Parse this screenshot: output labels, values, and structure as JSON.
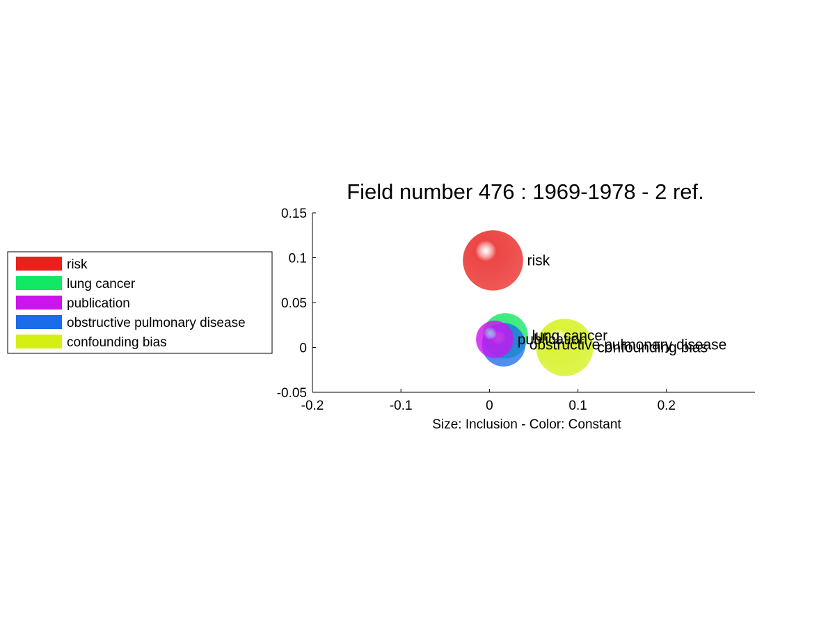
{
  "chart_data": {
    "type": "scatter",
    "title": "Field number 476 : 1969-1978  - 2 ref.",
    "xlabel": "Size: Inclusion - Color: Constant",
    "ylabel": "",
    "xlim": [
      -0.2,
      0.3
    ],
    "ylim": [
      -0.05,
      0.15
    ],
    "xticks": [
      -0.2,
      -0.1,
      0,
      0.1,
      0.2
    ],
    "xtick_labels": [
      "-0.2",
      "-0.1",
      "0",
      "0.1",
      "0.2"
    ],
    "yticks": [
      -0.05,
      0,
      0.05,
      0.1,
      0.15
    ],
    "ytick_labels": [
      "-0.05",
      "0",
      "0.05",
      "0.1",
      "0.15"
    ],
    "grid": false,
    "legend_position": "left",
    "series": [
      {
        "name": "risk",
        "x": 0.004,
        "y": 0.097,
        "size": 1.0,
        "color": "#e8211f"
      },
      {
        "name": "lung cancer",
        "x": 0.018,
        "y": 0.013,
        "size": 0.75,
        "color": "#12e862"
      },
      {
        "name": "publication",
        "x": 0.006,
        "y": 0.009,
        "size": 0.62,
        "color": "#cc14ee"
      },
      {
        "name": "obstructive pulmonary disease",
        "x": 0.016,
        "y": 0.003,
        "size": 0.72,
        "color": "#1a6ce8"
      },
      {
        "name": "confounding bias",
        "x": 0.085,
        "y": 0.0,
        "size": 0.95,
        "color": "#d4f012"
      }
    ]
  }
}
